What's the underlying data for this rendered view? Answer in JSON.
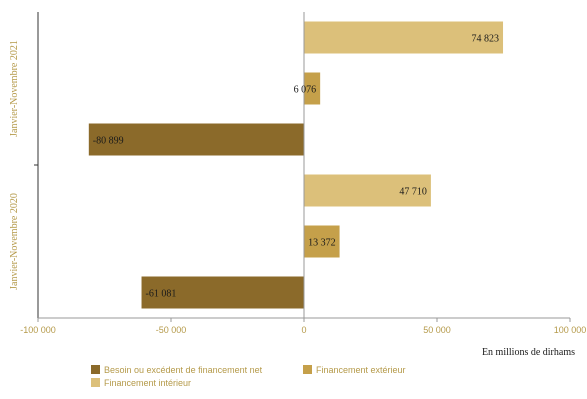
{
  "chart_data": {
    "type": "bar",
    "orientation": "horizontal",
    "title": "",
    "xlabel": "",
    "ylabel": "",
    "unit_label": "En millions de dirhams",
    "xlim": [
      -100000,
      100000
    ],
    "x_ticks": [
      -100000,
      -50000,
      0,
      50000,
      100000
    ],
    "x_tick_labels": [
      "-100 000",
      "-50 000",
      "0",
      "50 000",
      "100 000"
    ],
    "grid": false,
    "legend_position": "bottom",
    "categories": [
      "Janvier-Novembre 2021",
      "Janvier-Novembre 2020"
    ],
    "series": [
      {
        "name": "Financement intérieur",
        "color": "#dcc07a",
        "values": [
          74823,
          47710
        ],
        "labels": [
          "74 823",
          "47 710"
        ]
      },
      {
        "name": "Financement extérieur",
        "color": "#c5a04a",
        "values": [
          6076,
          13372
        ],
        "labels": [
          "6 076",
          "13 372"
        ]
      },
      {
        "name": "Besoin ou excédent de financement net",
        "color": "#8b6a2a",
        "values": [
          -80899,
          -61081
        ],
        "labels": [
          "-80 899",
          "-61 081"
        ]
      }
    ],
    "legend": [
      {
        "name": "Besoin ou excédent de financement net",
        "color": "#8b6a2a"
      },
      {
        "name": "Financement extérieur",
        "color": "#c5a04a"
      },
      {
        "name": "Financement intérieur",
        "color": "#dcc07a"
      }
    ]
  }
}
